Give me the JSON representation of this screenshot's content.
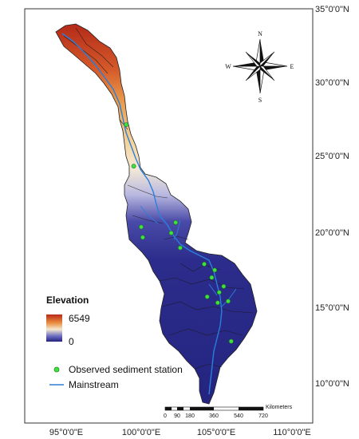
{
  "axes": {
    "longitude_labels": [
      "95°0'0\"E",
      "100°0'0\"E",
      "105°0'0\"E",
      "110°0'0\"E"
    ],
    "latitude_labels": [
      "35°0'0\"N",
      "30°0'0\"N",
      "25°0'0\"N",
      "20°0'0\"N",
      "15°0'0\"N",
      "10°0'0\"N"
    ]
  },
  "compass": {
    "north": "N",
    "south": "S",
    "east": "E",
    "west": "W"
  },
  "elevation_legend": {
    "title": "Elevation",
    "max_label": "6549",
    "min_label": "0"
  },
  "symbol_legend": {
    "station_label": "Observed sediment station",
    "mainstream_label": "Mainstream"
  },
  "scale_bar": {
    "unit": "Kilometers",
    "ticks": [
      "0",
      "90",
      "180",
      "360",
      "540",
      "720"
    ]
  },
  "colors": {
    "high": "#c8331a",
    "mid": "#f3e3c4",
    "low": "#23237e",
    "river": "#2a7fdc",
    "station": "#3ee13e"
  },
  "stations": [
    {
      "lon": 99.0,
      "lat": 27.2
    },
    {
      "lon": 99.5,
      "lat": 24.4
    },
    {
      "lon": 100.0,
      "lat": 20.3
    },
    {
      "lon": 100.1,
      "lat": 19.6
    },
    {
      "lon": 102.0,
      "lat": 19.9
    },
    {
      "lon": 102.3,
      "lat": 20.6
    },
    {
      "lon": 102.6,
      "lat": 18.9
    },
    {
      "lon": 104.2,
      "lat": 17.8
    },
    {
      "lon": 104.9,
      "lat": 17.4
    },
    {
      "lon": 104.7,
      "lat": 16.9
    },
    {
      "lon": 105.5,
      "lat": 16.3
    },
    {
      "lon": 105.2,
      "lat": 15.9
    },
    {
      "lon": 104.4,
      "lat": 15.6
    },
    {
      "lon": 105.1,
      "lat": 15.2
    },
    {
      "lon": 105.8,
      "lat": 15.3
    },
    {
      "lon": 106.0,
      "lat": 12.6
    }
  ]
}
